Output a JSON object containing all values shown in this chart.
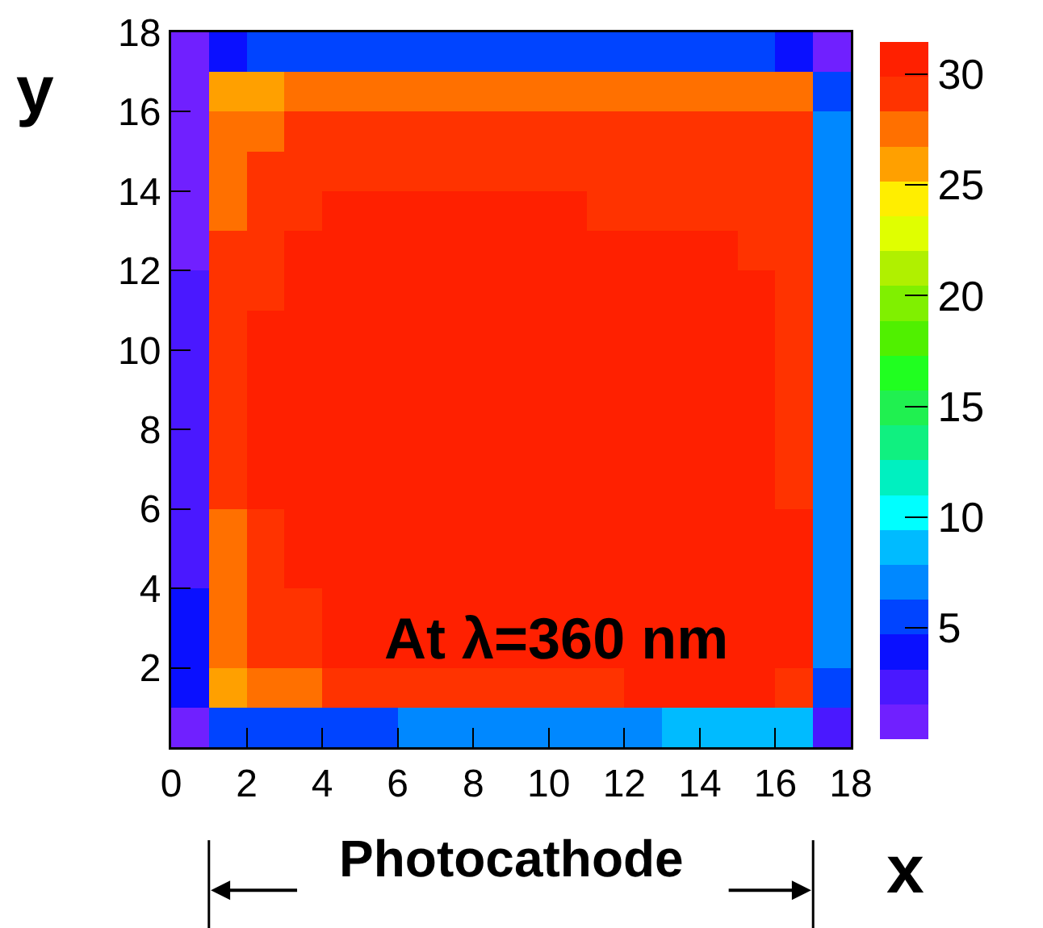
{
  "chart_data": {
    "type": "heatmap",
    "xlabel": "x",
    "ylabel": "y",
    "xlim": [
      0,
      18
    ],
    "xticks": [
      0,
      2,
      4,
      6,
      8,
      10,
      12,
      14,
      16,
      18
    ],
    "ylim": [
      0,
      18
    ],
    "yticks": [
      2,
      4,
      6,
      8,
      10,
      12,
      14,
      16,
      18
    ],
    "clim": [
      0,
      31.5
    ],
    "cticks": [
      5,
      10,
      15,
      20,
      25,
      30
    ],
    "cells": [
      [
        0.8,
        4.6,
        5.8,
        5.8,
        5.8,
        5.8,
        5.8,
        5.8,
        5.8,
        5.8,
        5.8,
        5.8,
        5.8,
        5.8,
        5.8,
        5.8,
        4.6,
        0.8
      ],
      [
        0.8,
        25.8,
        25.8,
        27.2,
        27.2,
        27.2,
        27.2,
        27.2,
        27.2,
        27.2,
        27.2,
        27.2,
        27.2,
        27.2,
        27.2,
        27.2,
        27.2,
        5.8
      ],
      [
        0.8,
        27.2,
        27.2,
        28.8,
        28.8,
        28.8,
        28.8,
        28.8,
        28.8,
        28.8,
        28.8,
        28.8,
        28.8,
        28.8,
        28.8,
        28.8,
        28.8,
        7.2
      ],
      [
        0.8,
        27.2,
        28.8,
        28.8,
        28.8,
        28.8,
        28.8,
        28.8,
        28.8,
        28.8,
        28.8,
        28.8,
        28.8,
        28.8,
        28.8,
        28.8,
        28.8,
        7.2
      ],
      [
        0.8,
        27.2,
        28.8,
        28.8,
        30.5,
        30.5,
        30.5,
        30.5,
        30.5,
        30.5,
        30.5,
        28.8,
        28.8,
        28.8,
        28.8,
        28.8,
        28.8,
        7.2
      ],
      [
        0.8,
        28.8,
        28.8,
        30.5,
        30.5,
        30.5,
        30.5,
        30.5,
        30.5,
        30.5,
        30.5,
        30.5,
        30.5,
        30.5,
        30.5,
        28.8,
        28.8,
        7.2
      ],
      [
        2.2,
        28.8,
        28.8,
        30.5,
        30.5,
        30.5,
        30.5,
        30.5,
        30.5,
        30.5,
        30.5,
        30.5,
        30.5,
        30.5,
        30.5,
        30.5,
        28.8,
        7.2
      ],
      [
        2.2,
        28.8,
        30.5,
        30.5,
        30.5,
        30.5,
        30.5,
        30.5,
        30.5,
        30.5,
        30.5,
        30.5,
        30.5,
        30.5,
        30.5,
        30.5,
        28.8,
        7.2
      ],
      [
        2.2,
        28.8,
        30.5,
        30.5,
        30.5,
        30.5,
        30.5,
        30.5,
        30.5,
        30.5,
        30.5,
        30.5,
        30.5,
        30.5,
        30.5,
        30.5,
        28.8,
        7.2
      ],
      [
        2.2,
        28.8,
        30.5,
        30.5,
        30.5,
        30.5,
        30.5,
        30.5,
        30.5,
        30.5,
        30.5,
        30.5,
        30.5,
        30.5,
        30.5,
        30.5,
        28.8,
        7.2
      ],
      [
        2.2,
        28.8,
        30.5,
        30.5,
        30.5,
        30.5,
        30.5,
        30.5,
        30.5,
        30.5,
        30.5,
        30.5,
        30.5,
        30.5,
        30.5,
        30.5,
        28.8,
        7.2
      ],
      [
        2.2,
        28.8,
        30.5,
        30.5,
        30.5,
        30.5,
        30.5,
        30.5,
        30.5,
        30.5,
        30.5,
        30.5,
        30.5,
        30.5,
        30.5,
        30.5,
        28.8,
        7.2
      ],
      [
        2.2,
        27.2,
        28.8,
        30.5,
        30.5,
        30.5,
        30.5,
        30.5,
        30.5,
        30.5,
        30.5,
        30.5,
        30.5,
        30.5,
        30.5,
        30.5,
        30.5,
        7.2
      ],
      [
        2.2,
        27.2,
        28.8,
        30.5,
        30.5,
        30.5,
        30.5,
        30.5,
        30.5,
        30.5,
        30.5,
        30.5,
        30.5,
        30.5,
        30.5,
        30.5,
        30.5,
        7.2
      ],
      [
        4.6,
        27.2,
        28.8,
        28.8,
        30.5,
        30.5,
        30.5,
        30.5,
        30.5,
        30.5,
        30.5,
        30.5,
        30.5,
        30.5,
        30.5,
        30.5,
        30.5,
        7.2
      ],
      [
        4.6,
        27.2,
        28.8,
        28.8,
        30.5,
        30.5,
        30.5,
        30.5,
        30.5,
        30.5,
        30.5,
        30.5,
        30.5,
        30.5,
        30.5,
        30.5,
        30.5,
        7.2
      ],
      [
        4.6,
        25.8,
        27.2,
        27.2,
        28.8,
        28.8,
        28.8,
        28.8,
        28.8,
        28.8,
        28.8,
        28.8,
        30.5,
        30.5,
        30.5,
        30.5,
        28.8,
        5.8
      ],
      [
        0.8,
        5.8,
        5.8,
        5.8,
        5.8,
        5.8,
        7.2,
        7.2,
        7.2,
        7.2,
        7.2,
        7.2,
        7.2,
        8.8,
        8.8,
        8.8,
        8.8,
        2.2
      ]
    ],
    "annotations": [
      "At λ=360 nm",
      "Photocathode"
    ]
  }
}
